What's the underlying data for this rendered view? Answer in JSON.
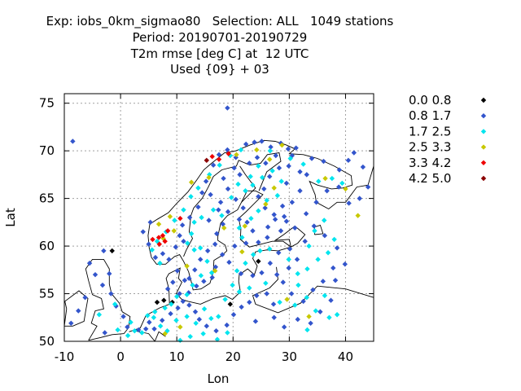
{
  "title_lines": [
    "Exp: iobs_0km_sigmao80   Selection: ALL   1049 stations",
    "Period: 20190701-20190729",
    "T2m rmse [deg C] at  12 UTC",
    "Used {09} + 03"
  ],
  "chart_data": {
    "type": "scatter",
    "title": "T2m rmse [deg C] at  12 UTC",
    "xlabel": "Lon",
    "ylabel": "Lat",
    "xlim": [
      -10,
      45
    ],
    "ylim": [
      50,
      76
    ],
    "xticks": [
      -10,
      0,
      10,
      20,
      30,
      40
    ],
    "yticks": [
      50,
      55,
      60,
      65,
      70,
      75
    ],
    "grid": true,
    "legend_position": "right",
    "basemap": "coastlines",
    "series": [
      {
        "name": "0.0 0.8",
        "color": "#000000",
        "points": [
          [
            6.5,
            54.1
          ],
          [
            7.7,
            54.3
          ],
          [
            9.2,
            54.1
          ],
          [
            19.5,
            53.9
          ],
          [
            24.5,
            58.4
          ],
          [
            -1.5,
            59.5
          ]
        ]
      },
      {
        "name": "0.8 1.7",
        "color": "#3355cc",
        "points": [
          [
            -8.5,
            71.0
          ],
          [
            19.0,
            74.5
          ],
          [
            -3,
            59.5
          ],
          [
            -5.5,
            58.2
          ],
          [
            -2,
            57.1
          ],
          [
            4,
            61.5
          ],
          [
            5,
            60.2
          ],
          [
            5.3,
            62.5
          ],
          [
            6.2,
            58.8
          ],
          [
            7.5,
            59.2
          ],
          [
            8.6,
            58.6
          ],
          [
            9.8,
            59.9
          ],
          [
            10.5,
            61.1
          ],
          [
            11,
            62.2
          ],
          [
            11.2,
            60.5
          ],
          [
            12.3,
            63.0
          ],
          [
            13.8,
            64.1
          ],
          [
            14.5,
            65.6
          ],
          [
            15.2,
            66.8
          ],
          [
            16.5,
            68.5
          ],
          [
            17.5,
            69.6
          ],
          [
            19.0,
            70.1
          ],
          [
            20.5,
            69.3
          ],
          [
            22.3,
            70.7
          ],
          [
            23.8,
            70.9
          ],
          [
            25.1,
            71.0
          ],
          [
            26.7,
            70.4
          ],
          [
            28.5,
            70.8
          ],
          [
            29.8,
            70.2
          ],
          [
            31.2,
            70.3
          ],
          [
            30.5,
            69.5
          ],
          [
            28.2,
            68.2
          ],
          [
            26.5,
            67.3
          ],
          [
            25.5,
            66.0
          ],
          [
            24.5,
            65.2
          ],
          [
            25.7,
            64.0
          ],
          [
            27.3,
            63.3
          ],
          [
            29.5,
            62.6
          ],
          [
            28.5,
            61.6
          ],
          [
            26.1,
            60.9
          ],
          [
            24.5,
            60.4
          ],
          [
            22.3,
            60.3
          ],
          [
            20.3,
            60.0
          ],
          [
            23.5,
            61.6
          ],
          [
            22.5,
            62.5
          ],
          [
            21.8,
            64.0
          ],
          [
            20.5,
            64.9
          ],
          [
            19.1,
            63.6
          ],
          [
            18.2,
            62.3
          ],
          [
            17.1,
            61.3
          ],
          [
            16.8,
            60.2
          ],
          [
            15.5,
            59.5
          ],
          [
            14.2,
            58.6
          ],
          [
            13.2,
            57.5
          ],
          [
            12.2,
            56.6
          ],
          [
            13.5,
            55.8
          ],
          [
            14.8,
            56.3
          ],
          [
            16.3,
            56.7
          ],
          [
            16.9,
            57.8
          ],
          [
            18.1,
            59.1
          ],
          [
            19.3,
            58.3
          ],
          [
            21.4,
            57.1
          ],
          [
            23.5,
            56.9
          ],
          [
            25.1,
            57.2
          ],
          [
            26.6,
            58.2
          ],
          [
            27.8,
            57.0
          ],
          [
            28.9,
            56.2
          ],
          [
            26.0,
            55.0
          ],
          [
            24.2,
            54.8
          ],
          [
            22.9,
            54.1
          ],
          [
            21.5,
            53.6
          ],
          [
            20.1,
            52.8
          ],
          [
            18.9,
            51.7
          ],
          [
            17.0,
            51.1
          ],
          [
            15.3,
            51.6
          ],
          [
            14.0,
            52.3
          ],
          [
            13.3,
            53.1
          ],
          [
            12.2,
            53.8
          ],
          [
            11.1,
            54.2
          ],
          [
            10.2,
            53.5
          ],
          [
            8.9,
            52.9
          ],
          [
            7.4,
            52.2
          ],
          [
            6.0,
            51.3
          ],
          [
            5.1,
            52.0
          ],
          [
            4.5,
            51.3
          ],
          [
            3.2,
            51.2
          ],
          [
            1.2,
            51.5
          ],
          [
            0.5,
            52.6
          ],
          [
            -0.8,
            53.7
          ],
          [
            -1.7,
            55.0
          ],
          [
            -3.2,
            55.9
          ],
          [
            -4.5,
            57.0
          ],
          [
            -6.3,
            54.6
          ],
          [
            -7.5,
            53.2
          ],
          [
            -8.8,
            51.9
          ],
          [
            -2.8,
            50.9
          ],
          [
            32.5,
            54.2
          ],
          [
            34.2,
            55.4
          ],
          [
            36.0,
            56.3
          ],
          [
            37.8,
            57.7
          ],
          [
            39.9,
            58.1
          ],
          [
            38.5,
            59.8
          ],
          [
            36.3,
            61.1
          ],
          [
            34.4,
            62.1
          ],
          [
            33.0,
            63.4
          ],
          [
            34.8,
            64.6
          ],
          [
            36.7,
            65.8
          ],
          [
            38.8,
            66.2
          ],
          [
            40.6,
            64.5
          ],
          [
            42.5,
            65.0
          ],
          [
            44.0,
            66.2
          ],
          [
            43.1,
            68.3
          ],
          [
            41.5,
            69.8
          ],
          [
            40.5,
            69.0
          ],
          [
            38.9,
            68.0
          ],
          [
            36.1,
            68.9
          ],
          [
            34.0,
            69.2
          ],
          [
            33.1,
            67.5
          ],
          [
            31.9,
            65.8
          ],
          [
            30.5,
            64.6
          ],
          [
            29.1,
            63.1
          ],
          [
            31.0,
            61.9
          ],
          [
            32.8,
            60.5
          ],
          [
            30.1,
            59.7
          ],
          [
            28.1,
            59.3
          ],
          [
            31.4,
            58.6
          ],
          [
            29.9,
            57.7
          ],
          [
            30.4,
            55.0
          ],
          [
            27.2,
            53.9
          ],
          [
            24.0,
            52.1
          ],
          [
            27.3,
            52.5
          ],
          [
            29.1,
            51.5
          ],
          [
            31.5,
            52.3
          ],
          [
            33.8,
            51.9
          ],
          [
            35.5,
            53.1
          ],
          [
            37.4,
            54.3
          ],
          [
            38.2,
            56.4
          ],
          [
            10.1,
            57.4
          ],
          [
            9.3,
            56.2
          ],
          [
            8.4,
            55.5
          ],
          [
            10.5,
            55.0
          ],
          [
            11.4,
            56.4
          ],
          [
            12.1,
            55.1
          ],
          [
            15.7,
            62.7
          ],
          [
            17.4,
            63.8
          ],
          [
            19.1,
            66.0
          ],
          [
            21.2,
            67.5
          ],
          [
            22.9,
            68.7
          ],
          [
            24.3,
            69.3
          ],
          [
            25.8,
            68.7
          ],
          [
            27.6,
            69.5
          ],
          [
            20.2,
            68.2
          ],
          [
            18.3,
            67.1
          ],
          [
            16.0,
            65.4
          ],
          [
            17.8,
            64.6
          ],
          [
            21.1,
            62.8
          ],
          [
            26.2,
            62.0
          ],
          [
            27.5,
            62.8
          ],
          [
            28.8,
            64.2
          ],
          [
            29.5,
            66.6
          ],
          [
            31.9,
            67.8
          ],
          [
            29.9,
            68.4
          ]
        ]
      },
      {
        "name": "1.7 2.5",
        "color": "#00e5ee",
        "points": [
          [
            -1.0,
            53.9
          ],
          [
            -3.8,
            52.8
          ],
          [
            -0.5,
            51.2
          ],
          [
            1.8,
            52.0
          ],
          [
            2.5,
            51.1
          ],
          [
            4.8,
            52.7
          ],
          [
            6.1,
            53.1
          ],
          [
            7.9,
            53.5
          ],
          [
            8.3,
            51.1
          ],
          [
            9.9,
            52.2
          ],
          [
            11.8,
            52.6
          ],
          [
            13.4,
            51.9
          ],
          [
            14.9,
            53.4
          ],
          [
            16.1,
            52.4
          ],
          [
            17.4,
            52.6
          ],
          [
            18.6,
            54.4
          ],
          [
            19.9,
            55.9
          ],
          [
            20.7,
            57.4
          ],
          [
            22.2,
            58.2
          ],
          [
            23.6,
            59.1
          ],
          [
            24.8,
            59.5
          ],
          [
            26.5,
            59.7
          ],
          [
            21.6,
            60.9
          ],
          [
            21.1,
            61.9
          ],
          [
            23.2,
            62.9
          ],
          [
            24.5,
            63.7
          ],
          [
            26.0,
            64.8
          ],
          [
            27.9,
            65.3
          ],
          [
            28.6,
            66.8
          ],
          [
            27.0,
            67.9
          ],
          [
            25.2,
            67.2
          ],
          [
            23.5,
            66.4
          ],
          [
            22.2,
            65.8
          ],
          [
            20.9,
            66.5
          ],
          [
            19.7,
            65.1
          ],
          [
            18.0,
            63.2
          ],
          [
            16.5,
            63.8
          ],
          [
            14.4,
            63.0
          ],
          [
            13.1,
            62.5
          ],
          [
            12.6,
            61.3
          ],
          [
            11.9,
            60.3
          ],
          [
            13.1,
            59.6
          ],
          [
            14.2,
            59.8
          ],
          [
            15.4,
            58.4
          ],
          [
            16.2,
            57.2
          ],
          [
            14.3,
            56.9
          ],
          [
            12.8,
            55.9
          ],
          [
            11.8,
            54.9
          ],
          [
            10.0,
            54.7
          ],
          [
            9.0,
            53.9
          ],
          [
            7.1,
            51.6
          ],
          [
            5.9,
            52.5
          ],
          [
            3.8,
            50.9
          ],
          [
            1.3,
            50.6
          ],
          [
            29.9,
            58.6
          ],
          [
            31.5,
            57.1
          ],
          [
            33.2,
            57.6
          ],
          [
            35.1,
            58.6
          ],
          [
            36.9,
            59.3
          ],
          [
            38.0,
            60.7
          ],
          [
            36.2,
            62.7
          ],
          [
            34.5,
            61.6
          ],
          [
            33.5,
            60.0
          ],
          [
            31.6,
            55.9
          ],
          [
            33.1,
            54.6
          ],
          [
            34.7,
            53.2
          ],
          [
            36.3,
            54.8
          ],
          [
            37.1,
            52.5
          ],
          [
            38.5,
            52.8
          ],
          [
            33.2,
            51.2
          ],
          [
            31.0,
            53.8
          ],
          [
            28.3,
            54.1
          ],
          [
            25.8,
            56.1
          ],
          [
            22.9,
            55.6
          ],
          [
            21.1,
            55.2
          ],
          [
            19.0,
            50.9
          ],
          [
            17.2,
            50.2
          ],
          [
            14.7,
            50.8
          ],
          [
            12.4,
            50.5
          ],
          [
            10.6,
            50.1
          ],
          [
            30.2,
            69.2
          ],
          [
            32.5,
            68.6
          ],
          [
            35.2,
            66.8
          ],
          [
            37.6,
            67.1
          ],
          [
            39.4,
            66.6
          ],
          [
            26.6,
            70.0
          ],
          [
            24.5,
            68.4
          ],
          [
            23.1,
            67.3
          ],
          [
            21.4,
            70.1
          ],
          [
            19.5,
            69.5
          ],
          [
            17.6,
            68.5
          ],
          [
            15.8,
            67.5
          ],
          [
            13.8,
            66.1
          ],
          [
            12.5,
            65.2
          ],
          [
            11.2,
            63.8
          ],
          [
            9.6,
            62.7
          ],
          [
            8.1,
            61.5
          ],
          [
            6.5,
            60.5
          ],
          [
            5.6,
            59.6
          ],
          [
            7.0,
            58.2
          ]
        ]
      },
      {
        "name": "2.5 3.3",
        "color": "#c8c800",
        "points": [
          [
            9.5,
            61.6
          ],
          [
            7.6,
            60.8
          ],
          [
            6.8,
            62.3
          ],
          [
            8.8,
            63.1
          ],
          [
            12.6,
            66.7
          ],
          [
            15.7,
            67.2
          ],
          [
            20.6,
            69.6
          ],
          [
            24.2,
            70.1
          ],
          [
            26.5,
            69.1
          ],
          [
            28.7,
            70.6
          ],
          [
            27.3,
            66.1
          ],
          [
            25.8,
            64.4
          ],
          [
            22.1,
            62.1
          ],
          [
            18.4,
            61.9
          ],
          [
            21.6,
            59.4
          ],
          [
            36.4,
            67.1
          ],
          [
            40.0,
            66.0
          ],
          [
            42.2,
            63.2
          ],
          [
            10.6,
            51.5
          ],
          [
            7.9,
            50.8
          ],
          [
            29.6,
            54.4
          ],
          [
            33.5,
            52.6
          ],
          [
            16.8,
            57.4
          ],
          [
            11.8,
            57.9
          ]
        ]
      },
      {
        "name": "3.3 4.2",
        "color": "#ee0000",
        "points": [
          [
            5.7,
            60.7
          ],
          [
            6.8,
            60.9
          ],
          [
            7.5,
            61.1
          ],
          [
            6.9,
            60.2
          ],
          [
            7.9,
            60.5
          ],
          [
            8.4,
            61.6
          ],
          [
            10.6,
            62.9
          ],
          [
            16.3,
            69.4
          ],
          [
            17.5,
            69.1
          ],
          [
            19.2,
            69.7
          ]
        ]
      },
      {
        "name": "4.2 5.0",
        "color": "#8b0000",
        "points": [
          [
            15.3,
            69.0
          ]
        ]
      }
    ]
  }
}
